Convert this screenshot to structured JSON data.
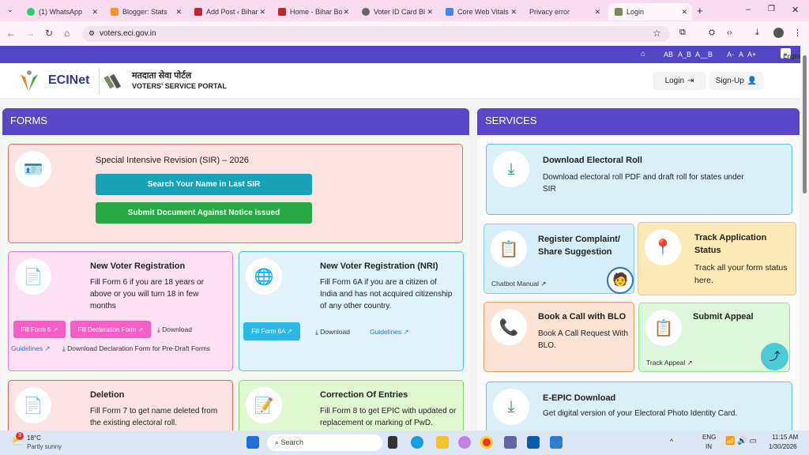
{
  "browser": {
    "tabs": [
      {
        "label": "(1) WhatsApp"
      },
      {
        "label": "Blogger: Stats"
      },
      {
        "label": "Add Post ‹ Bihar"
      },
      {
        "label": "Home - Bihar Bo"
      },
      {
        "label": "Voter ID Card Bl"
      },
      {
        "label": "Core Web Vitals"
      },
      {
        "label": "Privacy error"
      },
      {
        "label": "Login",
        "active": true
      }
    ],
    "url": "voters.eci.gov.in"
  },
  "topstrip": {
    "font_controls": [
      "AB",
      "A_B",
      "A__B"
    ],
    "size_controls": [
      "A-",
      "A",
      "A+"
    ],
    "language": "English"
  },
  "header": {
    "logo_text": "ECINet",
    "portal_hindi": "मतदाता सेवा पोर्टल",
    "portal_english": "VOTERS' SERVICE PORTAL",
    "login": "Login",
    "signup": "Sign-Up"
  },
  "forms": {
    "title": "FORMS",
    "sir": {
      "title": "Special Intensive Revision (SIR) – 2026",
      "search_btn": "Search Your Name in Last SIR",
      "submit_btn": "Submit Document Against Notice issued"
    },
    "nvr": {
      "title": "New Voter Registration",
      "desc": "Fill Form 6 if you are 18 years or above or you will turn 18 in few months",
      "btn1": "Fill Form 6 ↗",
      "btn2": "Fill Declaration Form ↗",
      "download": "Download",
      "guidelines": "Guidelines ↗",
      "download_decl": "Download Declaration Form for Pre-Draft Forms"
    },
    "nri": {
      "title": "New Voter Registration (NRI)",
      "desc": "Fill Form 6A if you are a citizen of India and has not acquired citizenship of any other country.",
      "btn": "Fill Form 6A ↗",
      "download": "Download",
      "guidelines": "Guidelines ↗"
    },
    "deletion": {
      "title": "Deletion",
      "desc": "Fill Form 7 to get name deleted from the existing electoral roll."
    },
    "correction": {
      "title": "Correction Of Entries",
      "desc": "Fill Form 8 to get EPIC with updated or replacement or marking of PwD."
    }
  },
  "services": {
    "title": "SERVICES",
    "roll": {
      "title": "Download Electoral Roll",
      "desc": "Download electoral roll PDF and draft roll for states under SIR"
    },
    "complaint": {
      "title": "Register Complaint/ Share Suggestion",
      "link": "Chatbot Manual ↗"
    },
    "track": {
      "title": "Track Application Status",
      "desc": "Track all your form status here."
    },
    "blo": {
      "title": "Book a Call with BLO",
      "desc": "Book A Call Request With BLO."
    },
    "appeal": {
      "title": "Submit Appeal",
      "link": "Track Appeal ↗"
    },
    "epic": {
      "title": "E-EPIC Download",
      "desc": "Get digital version of your Electoral Photo Identity Card."
    }
  },
  "taskbar": {
    "weather_temp": "18°C",
    "weather_desc": "Partly sunny",
    "weather_badge": "3",
    "search": "Search",
    "lang1": "ENG",
    "lang2": "IN",
    "time": "11:15 AM",
    "date": "1/30/2026"
  }
}
